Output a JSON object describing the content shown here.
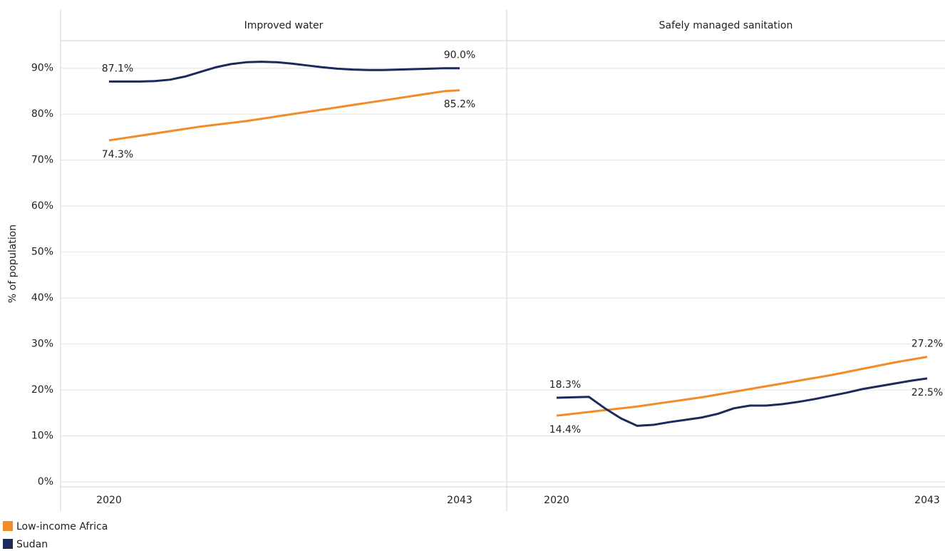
{
  "y_label": "% of population",
  "chart_data": [
    {
      "type": "line",
      "title": "Improved water",
      "x": [
        2020,
        2021,
        2022,
        2023,
        2024,
        2025,
        2026,
        2027,
        2028,
        2029,
        2030,
        2031,
        2032,
        2033,
        2034,
        2035,
        2036,
        2037,
        2038,
        2039,
        2040,
        2041,
        2042,
        2043
      ],
      "xticks": [
        2020,
        2043
      ],
      "ylim": [
        0,
        96
      ],
      "yticks": [
        {
          "value": 0,
          "label": "0%"
        },
        {
          "value": 10,
          "label": "10%"
        },
        {
          "value": 20,
          "label": "20%"
        },
        {
          "value": 30,
          "label": "30%"
        },
        {
          "value": 40,
          "label": "40%"
        },
        {
          "value": 50,
          "label": "50%"
        },
        {
          "value": 60,
          "label": "60%"
        },
        {
          "value": 70,
          "label": "70%"
        },
        {
          "value": 80,
          "label": "80%"
        },
        {
          "value": 90,
          "label": "90%"
        }
      ],
      "grid": true,
      "series": [
        {
          "name": "Low-income Africa",
          "color": "#f28c28",
          "values": [
            74.3,
            74.8,
            75.3,
            75.8,
            76.3,
            76.8,
            77.3,
            77.7,
            78.1,
            78.5,
            79.0,
            79.5,
            80.0,
            80.5,
            81.0,
            81.5,
            82.0,
            82.5,
            83.0,
            83.5,
            84.0,
            84.5,
            85.0,
            85.2
          ],
          "value_labels": [
            "74.3%",
            null,
            null,
            null,
            null,
            null,
            null,
            null,
            null,
            null,
            null,
            null,
            null,
            null,
            null,
            null,
            null,
            null,
            null,
            null,
            null,
            null,
            null,
            "85.2%"
          ]
        },
        {
          "name": "Sudan",
          "color": "#1d2a5c",
          "values": [
            87.1,
            87.1,
            87.1,
            87.2,
            87.5,
            88.2,
            89.2,
            90.2,
            90.9,
            91.3,
            91.4,
            91.3,
            91.0,
            90.6,
            90.2,
            89.9,
            89.7,
            89.6,
            89.6,
            89.7,
            89.8,
            89.9,
            90.0,
            90.0
          ],
          "value_labels": [
            "87.1%",
            null,
            null,
            null,
            null,
            null,
            null,
            null,
            null,
            null,
            null,
            null,
            null,
            null,
            null,
            null,
            null,
            null,
            null,
            null,
            null,
            null,
            null,
            "90.0%"
          ]
        }
      ]
    },
    {
      "type": "line",
      "title": "Safely managed sanitation",
      "x": [
        2020,
        2021,
        2022,
        2023,
        2024,
        2025,
        2026,
        2027,
        2028,
        2029,
        2030,
        2031,
        2032,
        2033,
        2034,
        2035,
        2036,
        2037,
        2038,
        2039,
        2040,
        2041,
        2042,
        2043
      ],
      "xticks": [
        2020,
        2043
      ],
      "ylim": [
        0,
        96
      ],
      "series": [
        {
          "color": "#f28c28",
          "values": [
            14.4,
            14.8,
            15.2,
            15.6,
            16.0,
            16.4,
            16.9,
            17.4,
            17.9,
            18.4,
            19.0,
            19.6,
            20.2,
            20.8,
            21.4,
            22.0,
            22.6,
            23.2,
            23.9,
            24.6,
            25.3,
            26.0,
            26.6,
            27.2
          ],
          "value_labels": [
            "14.4%",
            null,
            null,
            null,
            null,
            null,
            null,
            null,
            null,
            null,
            null,
            null,
            null,
            null,
            null,
            null,
            null,
            null,
            null,
            null,
            null,
            null,
            null,
            "27.2%"
          ]
        },
        {
          "color": "#1d2a5c",
          "values": [
            18.3,
            18.4,
            18.5,
            16.0,
            13.8,
            12.2,
            12.4,
            13.0,
            13.5,
            14.0,
            14.8,
            16.0,
            16.6,
            16.6,
            16.9,
            17.4,
            18.0,
            18.7,
            19.4,
            20.2,
            20.8,
            21.4,
            22.0,
            22.5
          ],
          "value_labels": [
            "18.3%",
            null,
            null,
            null,
            null,
            null,
            null,
            null,
            null,
            null,
            null,
            null,
            null,
            null,
            null,
            null,
            null,
            null,
            null,
            null,
            null,
            null,
            null,
            "22.5%"
          ]
        }
      ]
    }
  ]
}
